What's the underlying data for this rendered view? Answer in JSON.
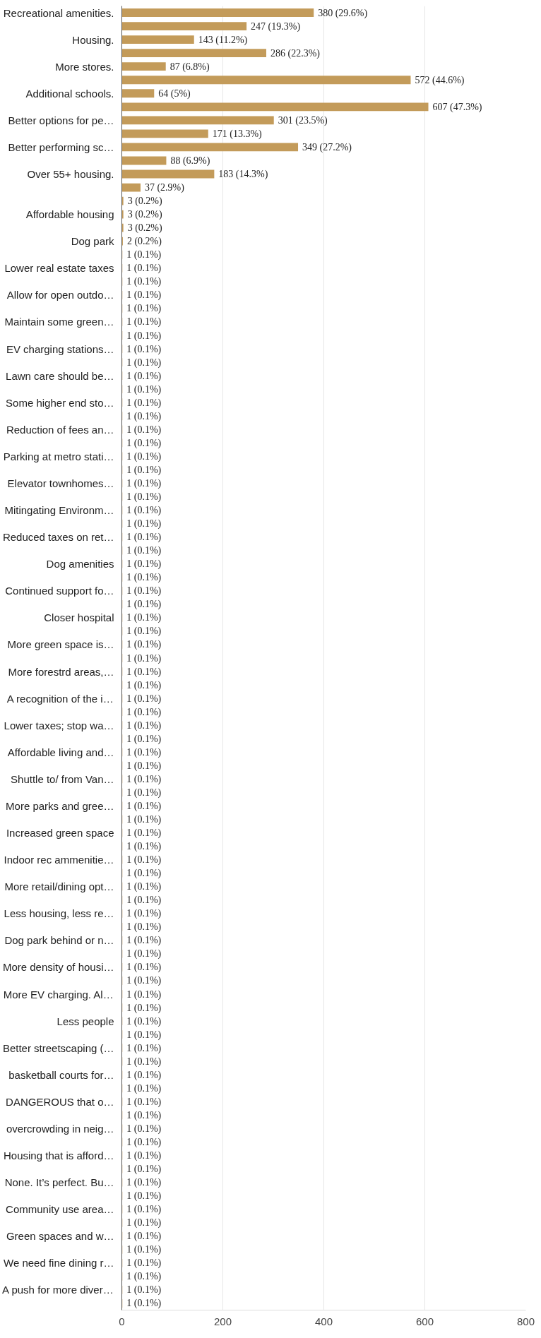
{
  "chart_data": {
    "type": "bar",
    "orientation": "horizontal",
    "color": "#c39b5a",
    "grid": "x",
    "xlim": [
      0,
      800
    ],
    "xticks": [
      0,
      200,
      400,
      600,
      800
    ],
    "categories": [
      "Recreational amenities.",
      null,
      "Housing.",
      null,
      "More stores.",
      null,
      "Additional schools.",
      null,
      "Better options for pe…",
      null,
      "Better performing sc…",
      null,
      "Over 55+ housing.",
      null,
      null,
      "Affordable housing",
      null,
      "Dog park",
      null,
      "Lower real estate taxes",
      null,
      "Allow for open outdo…",
      null,
      "Maintain some green…",
      null,
      "EV charging stations…",
      null,
      "Lawn care should be…",
      null,
      "Some higher end sto…",
      null,
      "Reduction of fees an…",
      null,
      "Parking at metro stati…",
      null,
      "Elevator townhomes…",
      null,
      "Mitingating Environm…",
      null,
      "Reduced taxes on ret…",
      null,
      "Dog amenities",
      null,
      "Continued support fo…",
      null,
      "Closer hospital",
      null,
      "More green space is…",
      null,
      "More forestrd areas,…",
      null,
      "A recognition of the i…",
      null,
      "Lower taxes; stop wa…",
      null,
      "Affordable living and…",
      null,
      "Shuttle to/ from Van…",
      null,
      "More parks and gree…",
      null,
      "Increased green space",
      null,
      "Indoor rec ammenitie…",
      null,
      "More retail/dining opt…",
      null,
      "Less housing, less re…",
      null,
      "Dog park behind or n…",
      null,
      "More density of housi…",
      null,
      "More EV charging. Al…",
      null,
      "Less people",
      null,
      "Better streetscaping (…",
      null,
      "basketball courts for…",
      null,
      "DANGEROUS that o…",
      null,
      "overcrowding in neig…",
      null,
      "Housing that is afford…",
      null,
      "None. It’s perfect. Bu…",
      null,
      "Community use area…",
      null,
      "Green spaces and w…",
      null,
      "We need fine dining r…",
      null,
      "A push for more diver…",
      null
    ],
    "values": [
      380,
      247,
      143,
      286,
      87,
      572,
      64,
      607,
      301,
      171,
      349,
      88,
      183,
      37,
      3,
      3,
      3,
      2,
      1,
      1,
      1,
      1,
      1,
      1,
      1,
      1,
      1,
      1,
      1,
      1,
      1,
      1,
      1,
      1,
      1,
      1,
      1,
      1,
      1,
      1,
      1,
      1,
      1,
      1,
      1,
      1,
      1,
      1,
      1,
      1,
      1,
      1,
      1,
      1,
      1,
      1,
      1,
      1,
      1,
      1,
      1,
      1,
      1,
      1,
      1,
      1,
      1,
      1,
      1,
      1,
      1,
      1,
      1,
      1,
      1,
      1,
      1,
      1,
      1,
      1,
      1,
      1,
      1,
      1,
      1,
      1,
      1,
      1,
      1,
      1,
      1,
      1,
      1,
      1,
      1,
      1,
      1
    ],
    "value_labels": [
      "380 (29.6%)",
      "247 (19.3%)",
      "143 (11.2%)",
      "286 (22.3%)",
      "87 (6.8%)",
      "572 (44.6%)",
      "64 (5%)",
      "607 (47.3%)",
      "301 (23.5%)",
      "171 (13.3%)",
      "349 (27.2%)",
      "88 (6.9%)",
      "183 (14.3%)",
      "37 (2.9%)",
      "3 (0.2%)",
      "3 (0.2%)",
      "3 (0.2%)",
      "2 (0.2%)",
      "1 (0.1%)",
      "1 (0.1%)",
      "1 (0.1%)",
      "1 (0.1%)",
      "1 (0.1%)",
      "1 (0.1%)",
      "1 (0.1%)",
      "1 (0.1%)",
      "1 (0.1%)",
      "1 (0.1%)",
      "1 (0.1%)",
      "1 (0.1%)",
      "1 (0.1%)",
      "1 (0.1%)",
      "1 (0.1%)",
      "1 (0.1%)",
      "1 (0.1%)",
      "1 (0.1%)",
      "1 (0.1%)",
      "1 (0.1%)",
      "1 (0.1%)",
      "1 (0.1%)",
      "1 (0.1%)",
      "1 (0.1%)",
      "1 (0.1%)",
      "1 (0.1%)",
      "1 (0.1%)",
      "1 (0.1%)",
      "1 (0.1%)",
      "1 (0.1%)",
      "1 (0.1%)",
      "1 (0.1%)",
      "1 (0.1%)",
      "1 (0.1%)",
      "1 (0.1%)",
      "1 (0.1%)",
      "1 (0.1%)",
      "1 (0.1%)",
      "1 (0.1%)",
      "1 (0.1%)",
      "1 (0.1%)",
      "1 (0.1%)",
      "1 (0.1%)",
      "1 (0.1%)",
      "1 (0.1%)",
      "1 (0.1%)",
      "1 (0.1%)",
      "1 (0.1%)",
      "1 (0.1%)",
      "1 (0.1%)",
      "1 (0.1%)",
      "1 (0.1%)",
      "1 (0.1%)",
      "1 (0.1%)",
      "1 (0.1%)",
      "1 (0.1%)",
      "1 (0.1%)",
      "1 (0.1%)",
      "1 (0.1%)",
      "1 (0.1%)",
      "1 (0.1%)",
      "1 (0.1%)",
      "1 (0.1%)",
      "1 (0.1%)",
      "1 (0.1%)",
      "1 (0.1%)",
      "1 (0.1%)",
      "1 (0.1%)",
      "1 (0.1%)",
      "1 (0.1%)",
      "1 (0.1%)",
      "1 (0.1%)",
      "1 (0.1%)",
      "1 (0.1%)",
      "1 (0.1%)",
      "1 (0.1%)",
      "1 (0.1%)",
      "1 (0.1%)",
      "1 (0.1%)"
    ]
  }
}
